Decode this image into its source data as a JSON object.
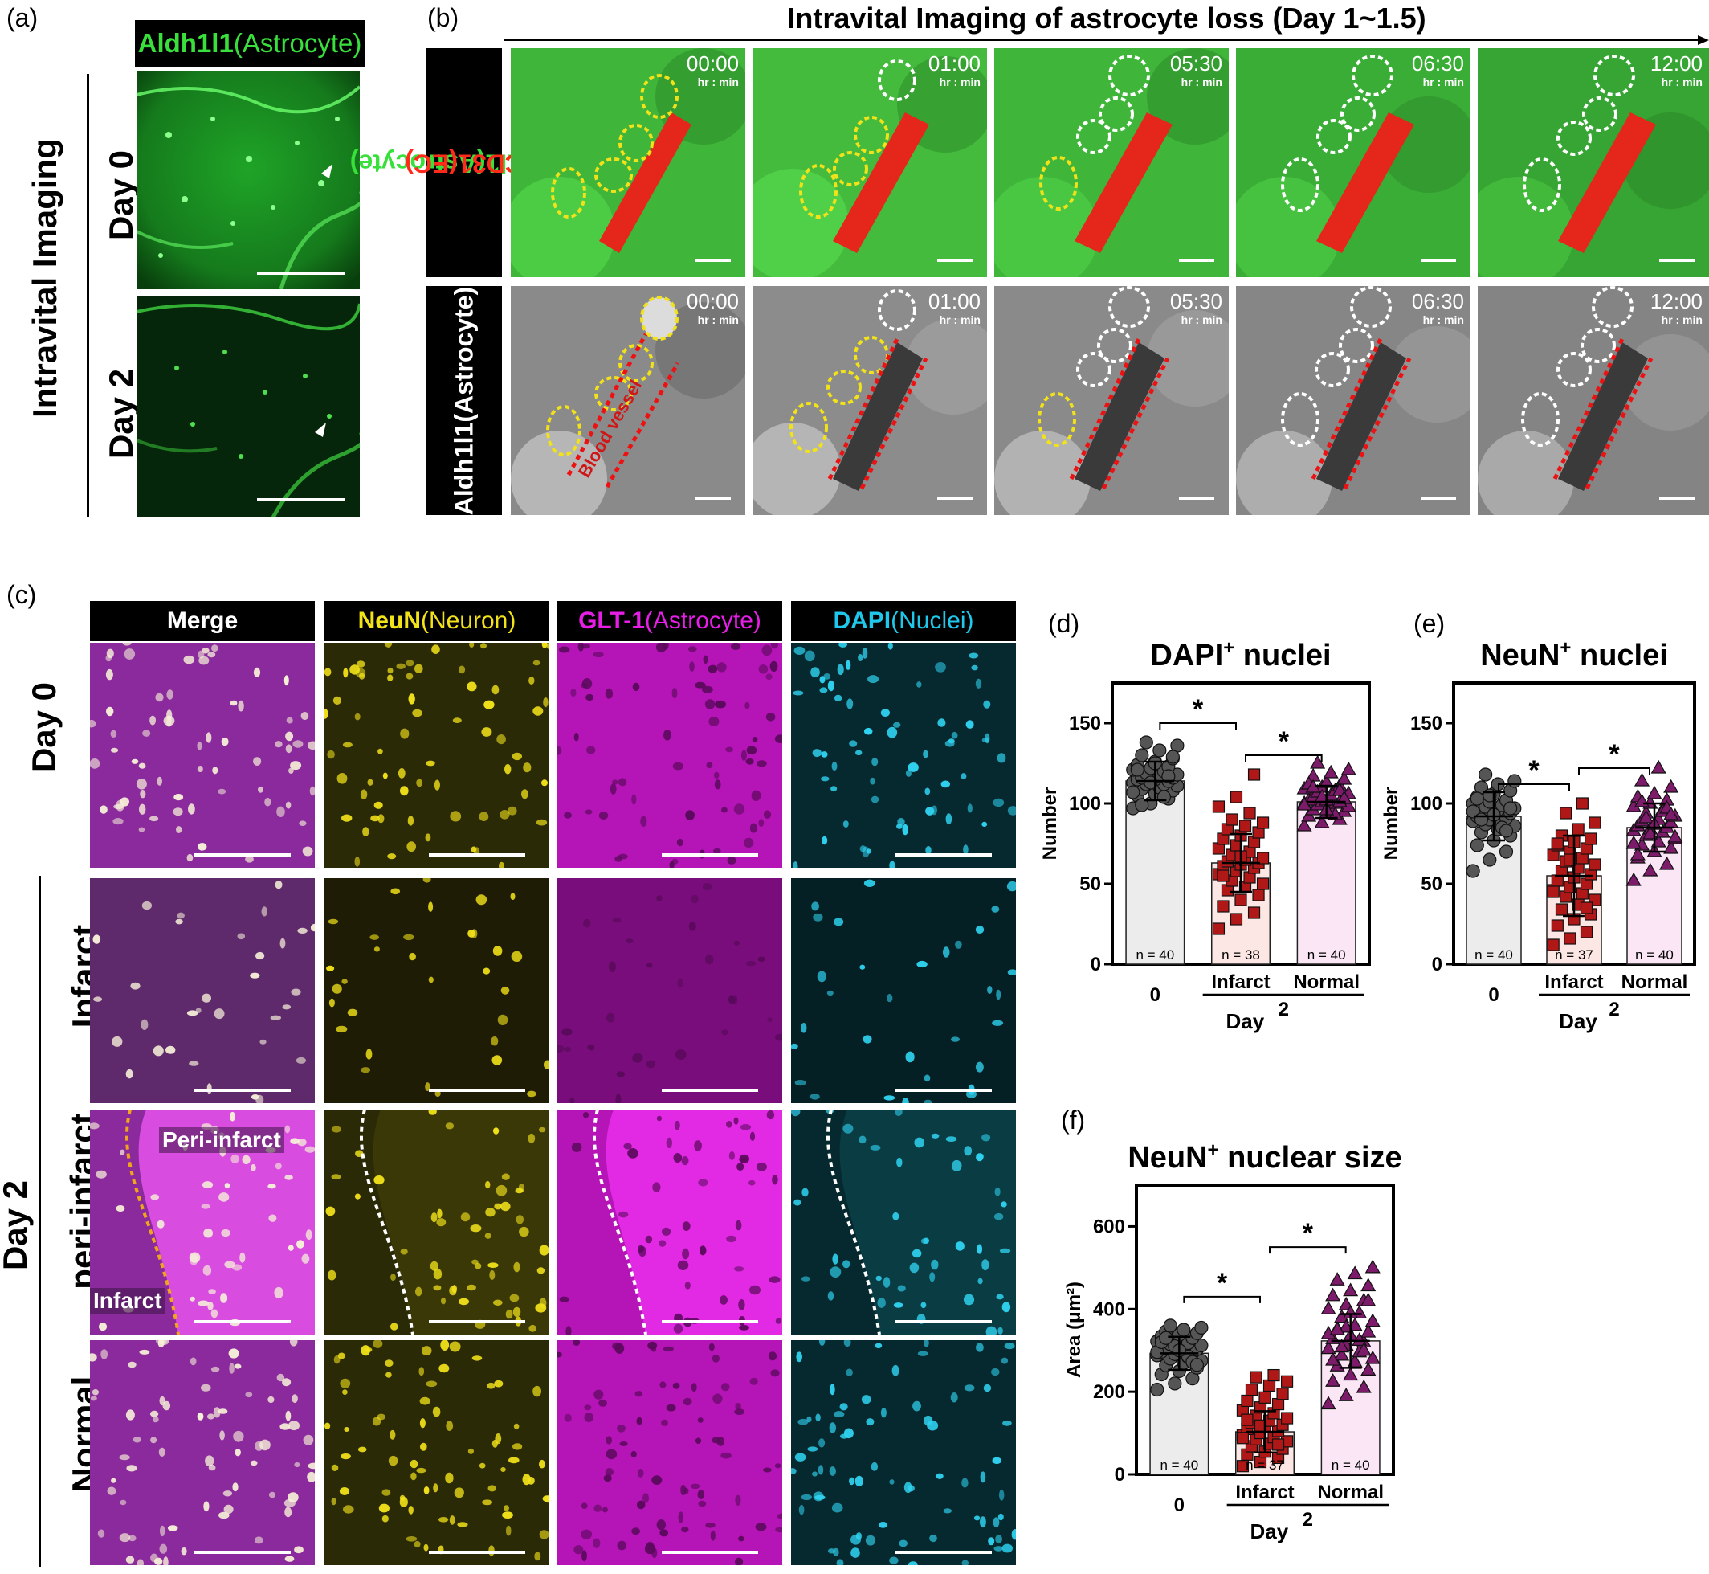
{
  "panels": {
    "a": {
      "letter": "(a)",
      "header_green": "Aldh1l1",
      "header_paren": "(Astrocyte)",
      "side_label": "Intravital Imaging",
      "rows": [
        "Day 0",
        "Day 2"
      ]
    },
    "b": {
      "letter": "(b)",
      "title": "Intravital Imaging of astrocyte loss (Day 1~1.5)",
      "row1_label_green": "Aldh1l1(Astrocyte)",
      "row1_label_red": "CD31(EC)",
      "row2_label": "Aldh1l1(Astrocyte)",
      "times": [
        "00:00",
        "01:00",
        "05:30",
        "06:30",
        "12:00"
      ],
      "time_unit": "hr : min",
      "vessel_label": "Blood vessel"
    },
    "c": {
      "letter": "(c)",
      "headers": [
        {
          "main": "Merge",
          "paren": ""
        },
        {
          "main": "NeuN",
          "paren": " (Neuron)"
        },
        {
          "main": "GLT-1",
          "paren": " (Astrocyte)"
        },
        {
          "main": "DAPI",
          "paren": " (Nuclei)"
        }
      ],
      "row_labels": [
        "Day 0",
        "Infarct",
        "peri-infarct",
        "Normal"
      ],
      "group_label": "Day 2",
      "peri_labels": {
        "top": "Peri-infarct",
        "bottom": "Infarct"
      }
    }
  },
  "colors": {
    "astro_green": "#39e03c",
    "ec_red": "#ff2a1a",
    "neun_yellow": "#f2e21a",
    "glt1_magenta": "#e61ee6",
    "dapi_cyan": "#1fc7ea",
    "day0_bar": "#ececec",
    "infarct_bar": "#fde7e4",
    "normal_bar": "#fbe6f6",
    "day0_marker": "#555555",
    "infarct_marker": "#b01818",
    "normal_marker": "#7d1b6b"
  },
  "chart_data": [
    {
      "id": "d",
      "letter": "(d)",
      "type": "bar",
      "title": "DAPI",
      "title_sup": "+",
      "title_rest": " nuclei",
      "ylabel": "Number",
      "xlabel": "Day",
      "ylim": [
        0,
        175
      ],
      "yticks": [
        0,
        50,
        100,
        150
      ],
      "categories": [
        "0",
        "Infarct",
        "Normal"
      ],
      "group_label": "2",
      "values": [
        114,
        63,
        101
      ],
      "sd": [
        12,
        18,
        10
      ],
      "n_labels": [
        "n = 40",
        "n = 38",
        "n = 40"
      ],
      "markers": [
        "circle",
        "square",
        "triangle"
      ],
      "points": [
        [
          97,
          100,
          103,
          105,
          106,
          108,
          109,
          110,
          111,
          112,
          112,
          113,
          114,
          114,
          115,
          115,
          116,
          116,
          117,
          118,
          119,
          120,
          121,
          122,
          123,
          124,
          126,
          128,
          130,
          133,
          136,
          138,
          104,
          107,
          113,
          117,
          121,
          125,
          129,
          99
        ],
        [
          22,
          28,
          32,
          36,
          40,
          43,
          46,
          48,
          50,
          52,
          54,
          56,
          58,
          60,
          61,
          62,
          63,
          64,
          65,
          66,
          68,
          70,
          72,
          74,
          76,
          78,
          80,
          82,
          84,
          86,
          88,
          90,
          94,
          98,
          104,
          118,
          55,
          67
        ],
        [
          86,
          88,
          90,
          92,
          94,
          95,
          96,
          97,
          98,
          99,
          100,
          100,
          101,
          101,
          102,
          102,
          103,
          104,
          105,
          106,
          107,
          108,
          109,
          110,
          111,
          112,
          113,
          115,
          117,
          119,
          121,
          125,
          93,
          99,
          104,
          108,
          112,
          96,
          103,
          110
        ]
      ],
      "significance": [
        {
          "from": 0,
          "to": 1,
          "label": "*",
          "y": 150
        },
        {
          "from": 1,
          "to": 2,
          "label": "*",
          "y": 130
        }
      ]
    },
    {
      "id": "e",
      "letter": "(e)",
      "type": "bar",
      "title": "NeuN",
      "title_sup": "+",
      "title_rest": " nuclei",
      "ylabel": "Number",
      "xlabel": "Day",
      "ylim": [
        0,
        175
      ],
      "yticks": [
        0,
        50,
        100,
        150
      ],
      "categories": [
        "0",
        "Infarct",
        "Normal"
      ],
      "group_label": "2",
      "values": [
        92,
        55,
        85
      ],
      "sd": [
        15,
        25,
        15
      ],
      "n_labels": [
        "n = 40",
        "n = 37",
        "n = 40"
      ],
      "markers": [
        "circle",
        "square",
        "triangle"
      ],
      "points": [
        [
          58,
          65,
          70,
          74,
          77,
          80,
          82,
          84,
          86,
          87,
          88,
          89,
          90,
          91,
          92,
          93,
          94,
          95,
          96,
          97,
          98,
          99,
          100,
          101,
          102,
          104,
          106,
          108,
          110,
          112,
          114,
          118,
          85,
          95,
          105,
          83,
          103,
          93,
          97,
          90
        ],
        [
          12,
          16,
          20,
          24,
          28,
          31,
          34,
          37,
          40,
          42,
          44,
          46,
          48,
          50,
          52,
          54,
          56,
          58,
          60,
          62,
          64,
          66,
          68,
          70,
          72,
          74,
          76,
          78,
          80,
          84,
          88,
          94,
          100,
          45,
          65,
          35,
          75
        ],
        [
          52,
          58,
          62,
          66,
          70,
          72,
          74,
          76,
          78,
          80,
          82,
          83,
          84,
          85,
          86,
          87,
          88,
          89,
          90,
          92,
          94,
          96,
          98,
          100,
          102,
          104,
          106,
          110,
          114,
          122,
          79,
          91,
          95,
          75,
          81,
          97,
          68,
          87,
          93,
          101
        ]
      ],
      "significance": [
        {
          "from": 0,
          "to": 1,
          "label": "*",
          "y": 112
        },
        {
          "from": 1,
          "to": 2,
          "label": "*",
          "y": 122
        }
      ]
    },
    {
      "id": "f",
      "letter": "(f)",
      "type": "bar",
      "title": "NeuN",
      "title_sup": "+",
      "title_rest": " nuclear size",
      "ylabel": "Area (μm²)",
      "xlabel": "Day",
      "ylim": [
        0,
        700
      ],
      "yticks": [
        0,
        200,
        400,
        600
      ],
      "categories": [
        "0",
        "Infarct",
        "Normal"
      ],
      "group_label": "2",
      "values": [
        293,
        103,
        323
      ],
      "sd": [
        40,
        50,
        65
      ],
      "n_labels": [
        "n = 40",
        "n = 37",
        "n = 40"
      ],
      "markers": [
        "circle",
        "square",
        "triangle"
      ],
      "points": [
        [
          205,
          220,
          232,
          242,
          250,
          258,
          264,
          270,
          275,
          280,
          284,
          288,
          291,
          294,
          297,
          300,
          303,
          306,
          309,
          312,
          315,
          318,
          322,
          326,
          330,
          334,
          338,
          342,
          346,
          350,
          355,
          360,
          285,
          296,
          310,
          272,
          320,
          300,
          265,
          330
        ],
        [
          20,
          30,
          40,
          48,
          55,
          62,
          68,
          74,
          80,
          85,
          90,
          95,
          100,
          105,
          110,
          115,
          120,
          125,
          130,
          136,
          142,
          148,
          155,
          162,
          170,
          178,
          186,
          195,
          205,
          215,
          225,
          235,
          240,
          88,
          118,
          72,
          132
        ],
        [
          170,
          190,
          210,
          225,
          240,
          252,
          262,
          272,
          280,
          288,
          296,
          304,
          312,
          320,
          328,
          336,
          344,
          352,
          360,
          370,
          380,
          390,
          400,
          410,
          420,
          432,
          444,
          456,
          470,
          485,
          500,
          308,
          324,
          340,
          356,
          300,
          276,
          390,
          420,
          350
        ]
      ],
      "significance": [
        {
          "from": 0,
          "to": 1,
          "label": "*",
          "y": 430
        },
        {
          "from": 1,
          "to": 2,
          "label": "*",
          "y": 550
        }
      ]
    }
  ]
}
